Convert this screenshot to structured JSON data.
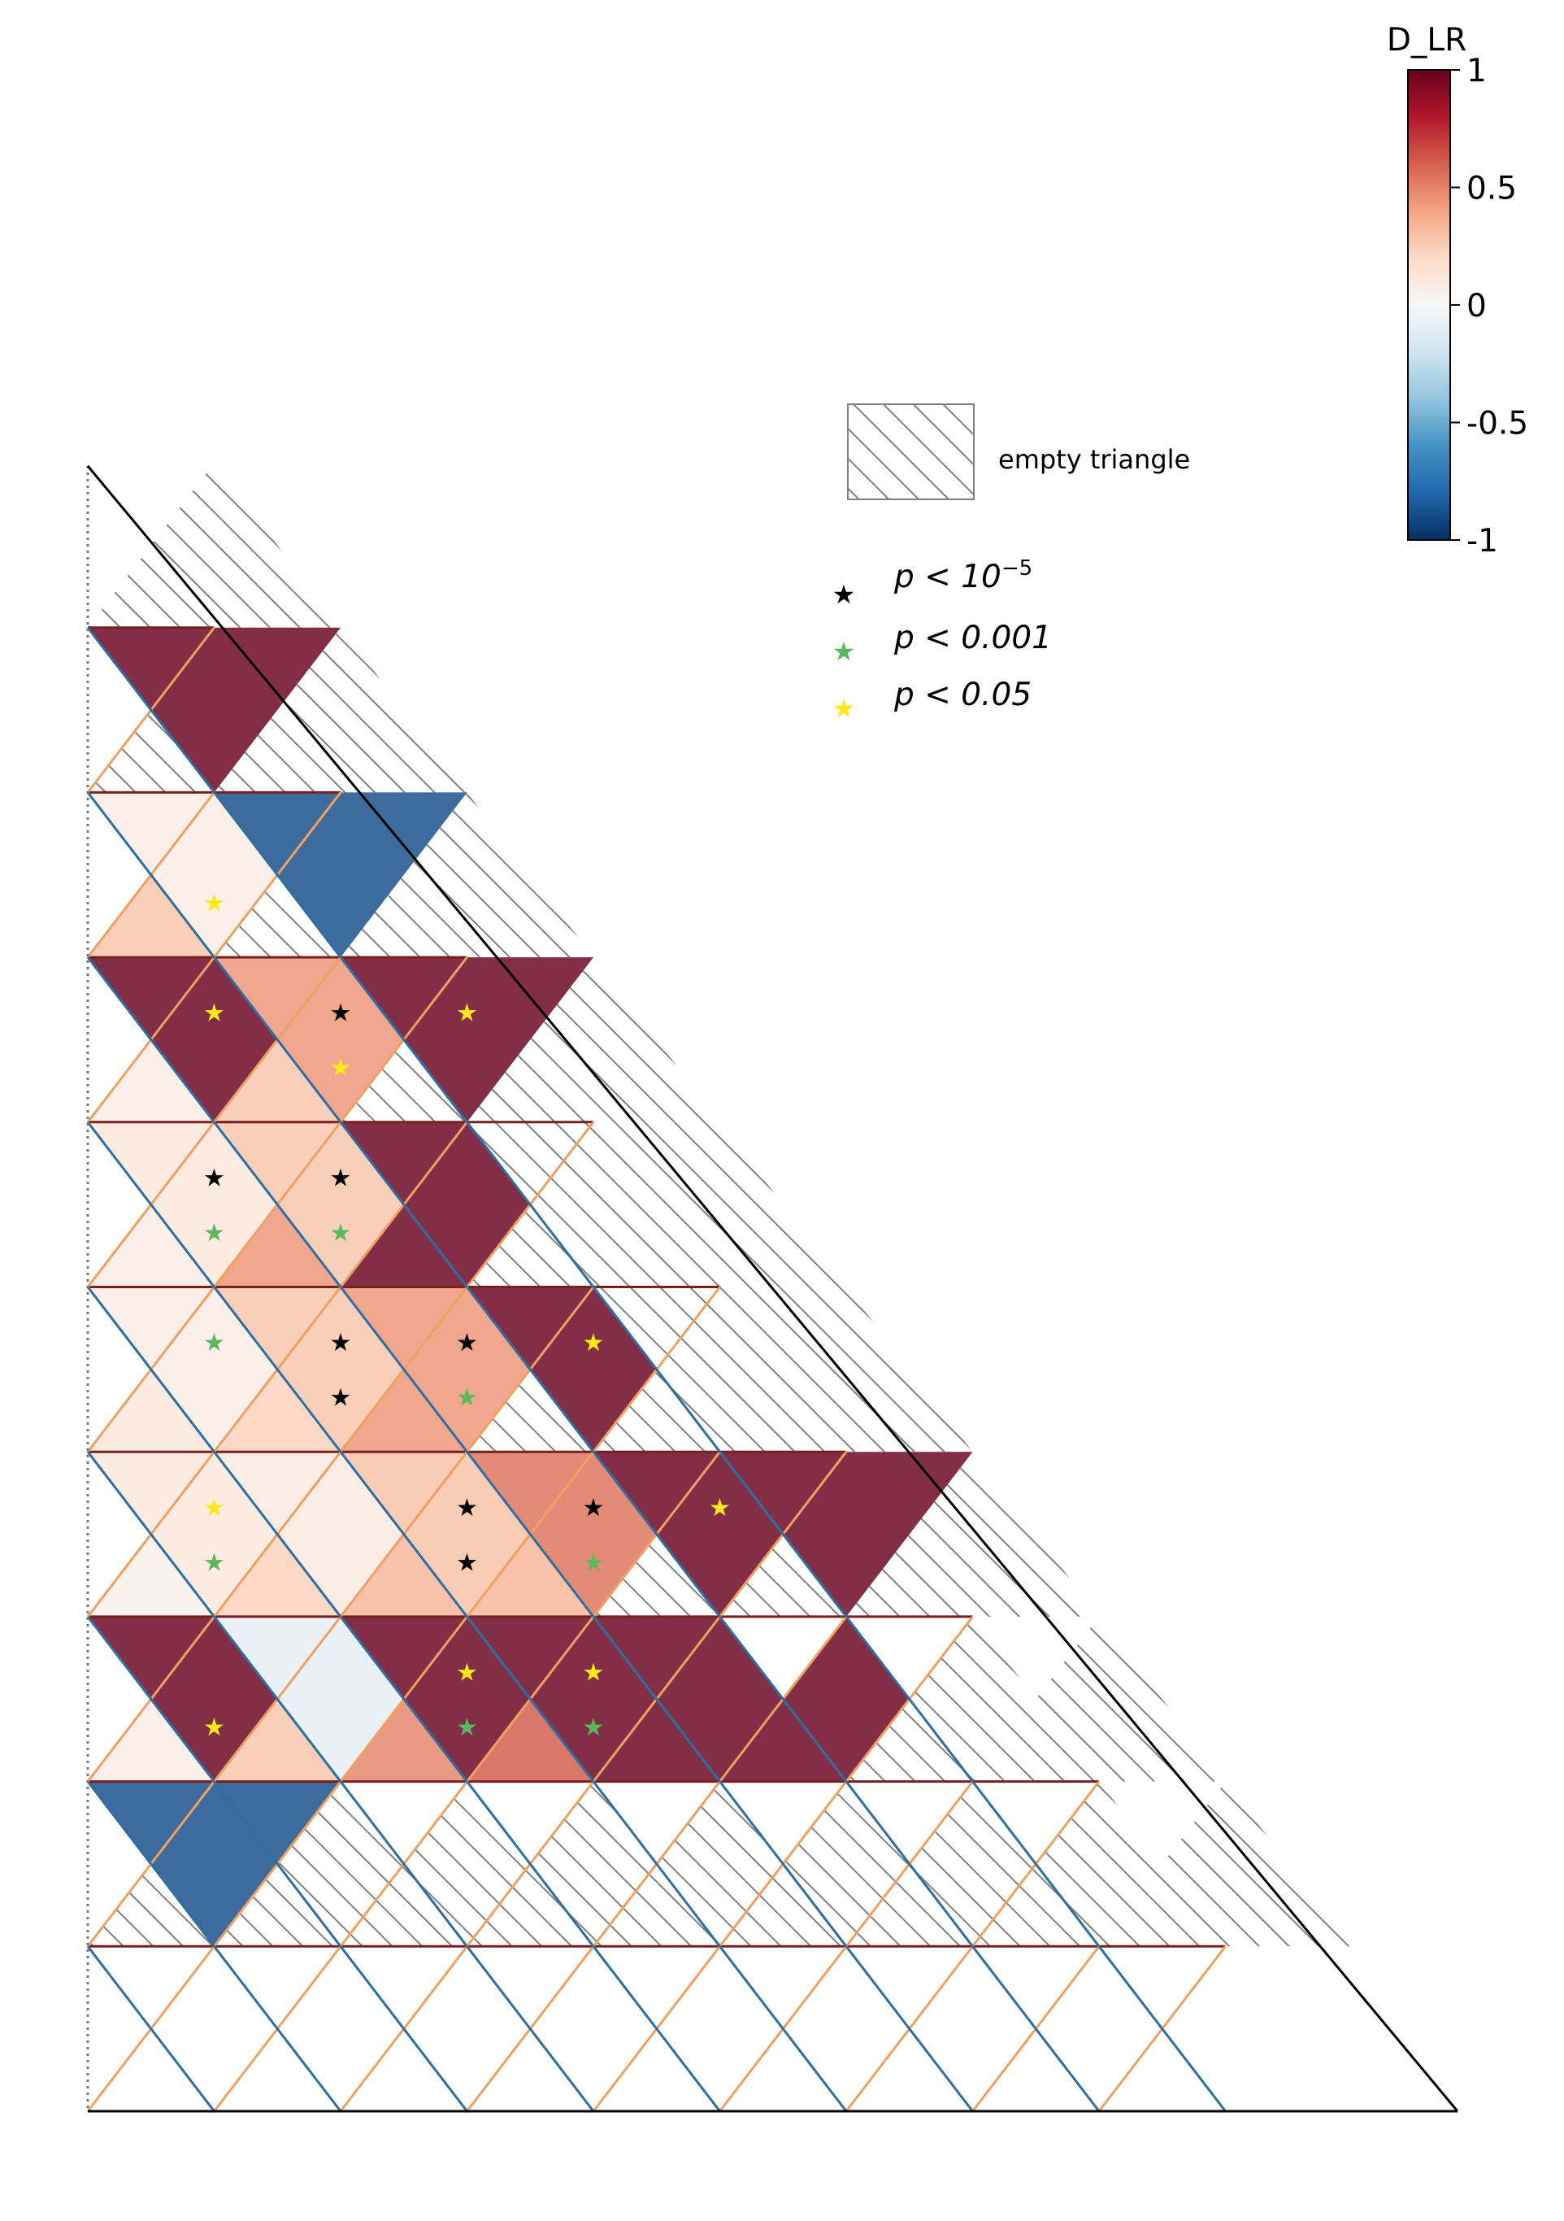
{
  "chart_data": {
    "type": "heatmap",
    "layout": "triangular ternary grid",
    "grid_n": 10,
    "colorbar": {
      "title": "D_LR",
      "colormap": "RdBu_r",
      "range": [
        -1,
        1
      ],
      "ticks": [
        1,
        0.5,
        0,
        -0.5,
        -1
      ],
      "tick_labels": [
        "1",
        "0.5",
        "0",
        "-0.5",
        "-1"
      ]
    },
    "legend": {
      "empty_label": "empty triangle",
      "significance": [
        {
          "key": "p1",
          "prefix": "p < 10",
          "sup": "−5",
          "color": "#000000"
        },
        {
          "key": "p2",
          "prefix": "p < 0.001",
          "sup": "",
          "color": "#5cb85c"
        },
        {
          "key": "p3",
          "prefix": "p < 0.05",
          "sup": "",
          "color": "#ffe81a"
        }
      ]
    },
    "cells": [
      {
        "row": 1,
        "up": [
          null
        ],
        "down": []
      },
      {
        "row": 2,
        "up": [
          null,
          null
        ],
        "down": [
          {
            "v": 1.0,
            "sig": null
          }
        ]
      },
      {
        "row": 3,
        "up": [
          {
            "v": 0.28,
            "sig": "p3"
          },
          null,
          null
        ],
        "down": [
          {
            "v": 0.08,
            "sig": null
          },
          {
            "v": -0.9,
            "sig": null
          }
        ]
      },
      {
        "row": 4,
        "up": [
          {
            "v": 0.08,
            "sig": null
          },
          {
            "v": 0.28,
            "sig": "p3"
          },
          null,
          null
        ],
        "down": [
          {
            "v": 1.0,
            "sig": "p3"
          },
          {
            "v": 0.45,
            "sig": "p1"
          },
          {
            "v": 1.0,
            "sig": "p3"
          }
        ]
      },
      {
        "row": 5,
        "up": [
          {
            "v": 0.08,
            "sig": "p2"
          },
          {
            "v": 0.45,
            "sig": "p2"
          },
          {
            "v": 1.0,
            "sig": null
          },
          null,
          null
        ],
        "down": [
          {
            "v": 0.12,
            "sig": "p1"
          },
          {
            "v": 0.28,
            "sig": "p1"
          },
          {
            "v": 1.0,
            "sig": null
          },
          null
        ]
      },
      {
        "row": 6,
        "up": [
          {
            "v": 0.12,
            "sig": null
          },
          {
            "v": 0.24,
            "sig": "p1"
          },
          {
            "v": 0.45,
            "sig": "p2"
          },
          null,
          null,
          null
        ],
        "down": [
          {
            "v": 0.08,
            "sig": "p2"
          },
          {
            "v": 0.28,
            "sig": "p1"
          },
          {
            "v": 0.45,
            "sig": "p1"
          },
          {
            "v": 1.0,
            "sig": "p3"
          },
          null
        ]
      },
      {
        "row": 7,
        "up": [
          {
            "v": 0.06,
            "sig": "p2"
          },
          {
            "v": 0.24,
            "sig": null
          },
          {
            "v": 0.34,
            "sig": "p1"
          },
          {
            "v": 0.34,
            "sig": "p2"
          },
          null,
          null,
          null
        ],
        "down": [
          {
            "v": 0.12,
            "sig": "p3"
          },
          {
            "v": 0.1,
            "sig": null
          },
          {
            "v": 0.3,
            "sig": "p1"
          },
          {
            "v": 0.55,
            "sig": "p1"
          },
          {
            "v": 1.0,
            "sig": "p3"
          },
          {
            "v": 1.0,
            "sig": null
          }
        ]
      },
      {
        "row": 8,
        "up": [
          {
            "v": 0.08,
            "sig": "p3"
          },
          {
            "v": 0.28,
            "sig": null
          },
          {
            "v": 0.5,
            "sig": "p2"
          },
          {
            "v": 0.62,
            "sig": "p2"
          },
          {
            "v": 1.0,
            "sig": null
          },
          {
            "v": 1.0,
            "sig": null
          },
          null,
          null
        ],
        "down": [
          {
            "v": 1.0,
            "sig": null
          },
          {
            "v": -0.1,
            "sig": null
          },
          {
            "v": 1.0,
            "sig": "p3"
          },
          {
            "v": 1.0,
            "sig": "p3"
          }
        ]
      },
      {
        "row": 9,
        "up": [
          null,
          null,
          null,
          null,
          null,
          null,
          null,
          null,
          null
        ],
        "down": [
          {
            "v": -0.9,
            "sig": null
          }
        ]
      }
    ]
  }
}
